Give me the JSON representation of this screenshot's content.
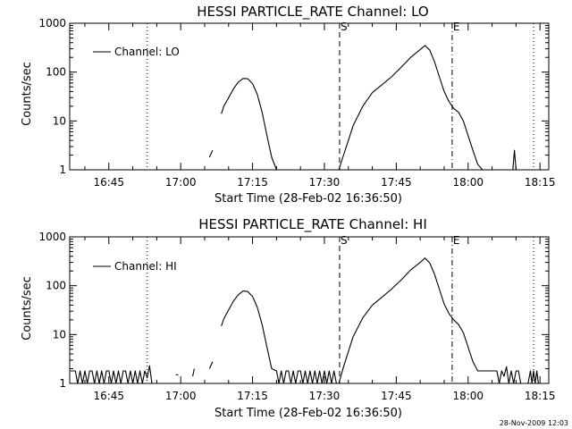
{
  "footer": {
    "timestamp": "28-Nov-2009 12:03"
  },
  "chart_data": [
    {
      "type": "line",
      "title": "HESSI PARTICLE_RATE Channel: LO",
      "xlabel": "Start Time (28-Feb-02 16:36:50)",
      "ylabel": "Counts/sec",
      "yscale": "log",
      "ylim": [
        1,
        1000
      ],
      "xlim": [
        "16:36:50",
        "18:16:50"
      ],
      "x_ticks": [
        "16:45",
        "17:00",
        "17:15",
        "17:30",
        "17:45",
        "18:00",
        "18:15"
      ],
      "y_ticks": [
        "1",
        "10",
        "100",
        "1000"
      ],
      "legend": {
        "position": "top-left",
        "entries": [
          "Channel: LO"
        ]
      },
      "markers": [
        {
          "label": "",
          "time": "16:53:00",
          "style": "dotted"
        },
        {
          "label": "S",
          "time": "17:33:10",
          "style": "dashed"
        },
        {
          "label": "E",
          "time": "17:56:40",
          "style": "dash-dot"
        },
        {
          "label": "",
          "time": "18:13:40",
          "style": "dotted"
        }
      ],
      "series": [
        {
          "name": "Channel: LO",
          "segments": [
            {
              "x": [
                "17:06:00",
                "17:06:40"
              ],
              "y": [
                1.8,
                2.5
              ]
            },
            {
              "x": [
                "17:08:30",
                "17:09:00",
                "17:10:00",
                "17:11:00",
                "17:12:00",
                "17:13:00",
                "17:14:00",
                "17:15:00",
                "17:16:00",
                "17:17:00",
                "17:18:00",
                "17:19:00",
                "17:20:00"
              ],
              "y": [
                14,
                20,
                30,
                45,
                62,
                74,
                73,
                58,
                35,
                15,
                5,
                1.8,
                1
              ]
            },
            {
              "x": [
                "17:33:00",
                "17:34:00",
                "17:35:00",
                "17:36:00",
                "17:38:00",
                "17:40:00",
                "17:42:00",
                "17:44:00",
                "17:46:00",
                "17:48:00",
                "17:50:00",
                "17:51:00",
                "17:52:00",
                "17:53:00",
                "17:54:00",
                "17:55:00",
                "17:56:00",
                "17:57:00",
                "17:58:00",
                "17:59:00",
                "18:00:00",
                "18:01:00",
                "18:02:00",
                "18:03:00"
              ],
              "y": [
                1,
                2,
                4,
                8,
                20,
                38,
                55,
                80,
                125,
                200,
                290,
                350,
                280,
                160,
                80,
                40,
                25,
                18,
                15,
                10,
                5,
                2.5,
                1.3,
                1
              ]
            },
            {
              "x": [
                "18:09:20",
                "18:09:40",
                "18:10:00"
              ],
              "y": [
                1,
                2.5,
                1
              ]
            }
          ]
        }
      ]
    },
    {
      "type": "line",
      "title": "HESSI PARTICLE_RATE Channel: HI",
      "xlabel": "Start Time (28-Feb-02 16:36:50)",
      "ylabel": "Counts/sec",
      "yscale": "log",
      "ylim": [
        1,
        1000
      ],
      "xlim": [
        "16:36:50",
        "18:16:50"
      ],
      "x_ticks": [
        "16:45",
        "17:00",
        "17:15",
        "17:30",
        "17:45",
        "18:00",
        "18:15"
      ],
      "y_ticks": [
        "1",
        "10",
        "100",
        "1000"
      ],
      "legend": {
        "position": "top-left",
        "entries": [
          "Channel: HI"
        ]
      },
      "markers": [
        {
          "label": "",
          "time": "16:53:00",
          "style": "dotted"
        },
        {
          "label": "S",
          "time": "17:33:10",
          "style": "dashed"
        },
        {
          "label": "E",
          "time": "17:56:40",
          "style": "dash-dot"
        },
        {
          "label": "",
          "time": "18:13:40",
          "style": "dotted"
        }
      ],
      "series": [
        {
          "name": "Channel: HI",
          "segments": [
            {
              "x": [
                "16:37:00",
                "16:38:00",
                "16:38:30",
                "16:39:00",
                "16:39:30",
                "16:40:00",
                "16:40:30",
                "16:41:00",
                "16:41:30",
                "16:42:00",
                "16:42:30",
                "16:43:00",
                "16:43:30",
                "16:44:00",
                "16:44:30",
                "16:45:00",
                "16:45:30",
                "16:46:00",
                "16:46:30",
                "16:47:00",
                "16:47:30",
                "16:48:00",
                "16:48:30",
                "16:49:00",
                "16:49:30",
                "16:50:00",
                "16:50:30",
                "16:51:00",
                "16:51:30",
                "16:52:00",
                "16:52:30",
                "16:53:00",
                "16:53:30",
                "16:54:00"
              ],
              "y": [
                1.8,
                1.8,
                1,
                1.8,
                1,
                1.8,
                1,
                1.8,
                1.8,
                1,
                1.8,
                1,
                1.8,
                1,
                1.8,
                1.8,
                1,
                1.8,
                1,
                1.8,
                1,
                1.8,
                1.8,
                1,
                1.8,
                1,
                1.8,
                1,
                1.8,
                1,
                1.8,
                1.3,
                2.3,
                1
              ]
            },
            {
              "x": [
                "16:59:00",
                "16:59:30"
              ],
              "y": [
                1.5,
                1.5
              ]
            },
            {
              "x": [
                "17:02:30",
                "17:02:50"
              ],
              "y": [
                1.4,
                2
              ]
            },
            {
              "x": [
                "17:06:00",
                "17:06:40"
              ],
              "y": [
                2,
                2.8
              ]
            },
            {
              "x": [
                "17:08:30",
                "17:09:00",
                "17:10:00",
                "17:11:00",
                "17:12:00",
                "17:13:00",
                "17:14:00",
                "17:15:00",
                "17:16:00",
                "17:17:00",
                "17:18:00",
                "17:19:00",
                "17:20:00",
                "17:20:30",
                "17:21:00",
                "17:21:30",
                "17:22:00",
                "17:22:30",
                "17:23:00",
                "17:23:30",
                "17:24:00",
                "17:24:30",
                "17:25:00",
                "17:25:30",
                "17:26:00",
                "17:26:30",
                "17:27:00",
                "17:27:30",
                "17:28:00",
                "17:28:30",
                "17:29:00",
                "17:29:30",
                "17:30:00",
                "17:30:30",
                "17:31:00",
                "17:31:30",
                "17:32:00",
                "17:32:30",
                "17:33:00"
              ],
              "y": [
                15,
                21,
                32,
                48,
                65,
                78,
                76,
                60,
                36,
                16,
                5.5,
                2,
                1.8,
                1,
                1.8,
                1,
                1.8,
                1.8,
                1,
                1.8,
                1,
                1.8,
                1.8,
                1,
                1.8,
                1,
                1.8,
                1,
                1.8,
                1,
                1.8,
                1,
                1.8,
                1,
                1.8,
                1,
                1.8,
                1,
                1
              ]
            },
            {
              "x": [
                "17:33:00",
                "17:34:00",
                "17:35:00",
                "17:36:00",
                "17:38:00",
                "17:40:00",
                "17:42:00",
                "17:44:00",
                "17:46:00",
                "17:48:00",
                "17:50:00",
                "17:51:00",
                "17:52:00",
                "17:53:00",
                "17:54:00",
                "17:55:00",
                "17:56:00",
                "17:57:00",
                "17:58:00",
                "17:59:00",
                "18:00:00",
                "18:01:00",
                "18:02:00",
                "18:03:00",
                "18:04:00",
                "18:05:00",
                "18:06:00",
                "18:06:30",
                "18:07:00",
                "18:07:30",
                "18:08:00",
                "18:08:30",
                "18:09:00",
                "18:09:30",
                "18:10:00",
                "18:10:30",
                "18:11:00"
              ],
              "y": [
                1,
                2.2,
                4.5,
                9,
                22,
                40,
                58,
                85,
                130,
                210,
                300,
                370,
                290,
                170,
                85,
                42,
                27,
                20,
                16,
                11,
                5.5,
                2.8,
                1.8,
                1.8,
                1.8,
                1.8,
                1.8,
                1,
                1.8,
                1.4,
                2.2,
                1,
                1.8,
                1,
                1.8,
                1.8,
                1
              ]
            },
            {
              "x": [
                "18:12:30",
                "18:13:00",
                "18:13:20",
                "18:13:40",
                "18:14:00",
                "18:14:20",
                "18:14:40"
              ],
              "y": [
                1,
                1.8,
                1,
                1.8,
                1,
                1.8,
                1
              ]
            }
          ]
        }
      ]
    }
  ]
}
